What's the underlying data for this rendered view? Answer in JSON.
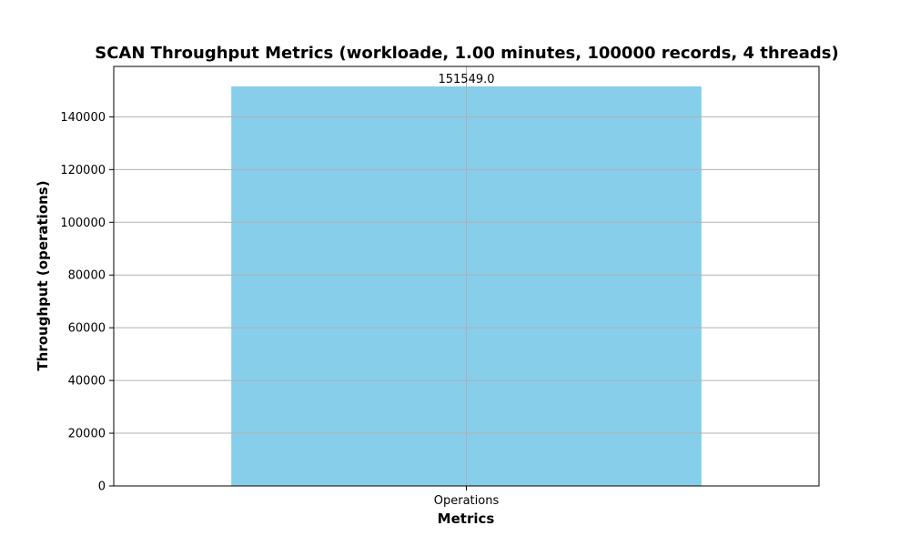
{
  "chart_data": {
    "type": "bar",
    "title": "SCAN Throughput Metrics (workloade, 1.00 minutes, 100000 records, 4 threads)",
    "xlabel": "Metrics",
    "ylabel": "Throughput (operations)",
    "categories": [
      "Operations"
    ],
    "values": [
      151549.0
    ],
    "data_labels": [
      "151549.0"
    ],
    "ylim": [
      0,
      159126.45
    ],
    "yticks": [
      0,
      20000,
      40000,
      60000,
      80000,
      100000,
      120000,
      140000
    ],
    "grid": true,
    "legend": "none",
    "bar_color": "#87ceeb",
    "grid_color": "#b0b0b0"
  }
}
